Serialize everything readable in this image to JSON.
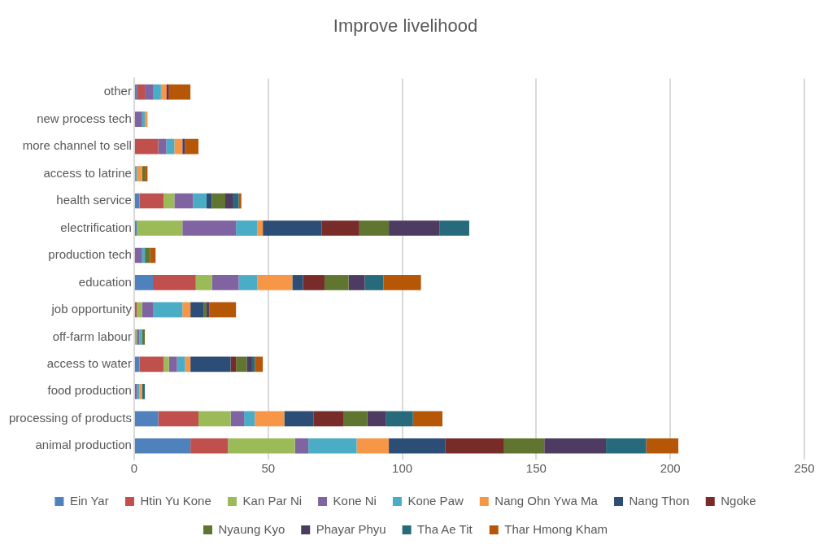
{
  "chart_data": {
    "type": "bar",
    "orientation": "horizontal",
    "stacked": true,
    "title": "Improve livelihood",
    "categories": [
      "other",
      "new process tech",
      "more channel to sell",
      "access to latrine",
      "health service",
      "electrification",
      "production tech",
      "education",
      "job opportunity",
      "off-farm labour",
      "access to water",
      "food production",
      "processing of products",
      "animal production"
    ],
    "series": [
      {
        "name": "Ein Yar",
        "color": "#4f81bd",
        "values": [
          1,
          0,
          0,
          0,
          2,
          1,
          0,
          7,
          0,
          0,
          2,
          0,
          9,
          21
        ]
      },
      {
        "name": "Htin Yu Kone",
        "color": "#c0504d",
        "values": [
          3,
          0,
          9,
          0,
          9,
          0,
          0,
          16,
          1,
          0,
          9,
          0,
          15,
          14
        ]
      },
      {
        "name": "Kan Par Ni",
        "color": "#9bbb59",
        "values": [
          0,
          0,
          0,
          0,
          4,
          17,
          0,
          6,
          2,
          1,
          2,
          0,
          12,
          25
        ]
      },
      {
        "name": "Kone Ni",
        "color": "#8064a2",
        "values": [
          3,
          3,
          3,
          0,
          7,
          20,
          3,
          10,
          4,
          1,
          3,
          1,
          5,
          5
        ]
      },
      {
        "name": "Kone Paw",
        "color": "#4bacc6",
        "values": [
          3,
          1,
          3,
          1,
          5,
          8,
          1,
          7,
          11,
          1,
          3,
          1,
          4,
          18
        ]
      },
      {
        "name": "Nang Ohn Ywa Ma",
        "color": "#f79646",
        "values": [
          2,
          1,
          3,
          2,
          0,
          2,
          0,
          13,
          3,
          0,
          2,
          1,
          11,
          12
        ]
      },
      {
        "name": "Nang Thon",
        "color": "#2c4d75",
        "values": [
          0,
          0,
          0,
          0,
          2,
          22,
          0,
          4,
          5,
          0,
          15,
          0,
          11,
          21
        ]
      },
      {
        "name": "Ngoke",
        "color": "#772c2a",
        "values": [
          1,
          0,
          0,
          0,
          0,
          14,
          0,
          8,
          0,
          0,
          2,
          0,
          11,
          22
        ]
      },
      {
        "name": "Nyaung Kyo",
        "color": "#5f7530",
        "values": [
          0,
          0,
          0,
          1,
          5,
          11,
          2,
          9,
          1,
          1,
          4,
          0,
          9,
          15
        ]
      },
      {
        "name": "Phayar Phyu",
        "color": "#4d3b62",
        "values": [
          0,
          0,
          1,
          0,
          3,
          19,
          0,
          6,
          1,
          0,
          2,
          0,
          7,
          23
        ]
      },
      {
        "name": "Tha Ae Tit",
        "color": "#276a7c",
        "values": [
          0,
          0,
          0,
          0,
          2,
          11,
          0,
          7,
          0,
          0,
          1,
          1,
          10,
          15
        ]
      },
      {
        "name": "Thar Hmong Kham",
        "color": "#b65708",
        "values": [
          8,
          0,
          5,
          1,
          1,
          0,
          2,
          14,
          10,
          0,
          3,
          0,
          11,
          12
        ]
      }
    ],
    "xlim": [
      0,
      250
    ],
    "xticks": [
      0,
      50,
      100,
      150,
      200,
      250
    ],
    "grid": "x",
    "legend": "bottom"
  }
}
